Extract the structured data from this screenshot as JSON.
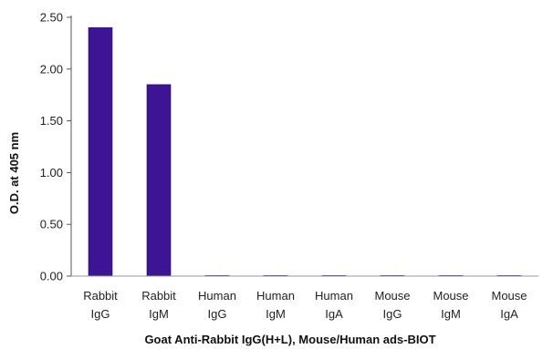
{
  "chart_data": {
    "type": "bar",
    "categories": [
      [
        "Rabbit",
        "IgG"
      ],
      [
        "Rabbit",
        "IgM"
      ],
      [
        "Human",
        "IgG"
      ],
      [
        "Human",
        "IgM"
      ],
      [
        "Human",
        "IgA"
      ],
      [
        "Mouse",
        "IgG"
      ],
      [
        "Mouse",
        "IgM"
      ],
      [
        "Mouse",
        "IgA"
      ]
    ],
    "values": [
      2.4,
      1.85,
      0.005,
      0.002,
      0.002,
      0.005,
      0.002,
      0.002
    ],
    "xlabel": "Goat Anti-Rabbit IgG(H+L), Mouse/Human ads-BIOT",
    "ylabel": "O.D. at 405 nm",
    "ylim": [
      0,
      2.5
    ],
    "yticks": [
      "0.00",
      "0.50",
      "1.00",
      "1.50",
      "2.00",
      "2.50"
    ],
    "grid": false,
    "legend": "none",
    "colors": {
      "bar": "#3c1494",
      "bar_edge": "#25086b",
      "axis": "#555555",
      "baseline": "#9a9a9a"
    }
  }
}
